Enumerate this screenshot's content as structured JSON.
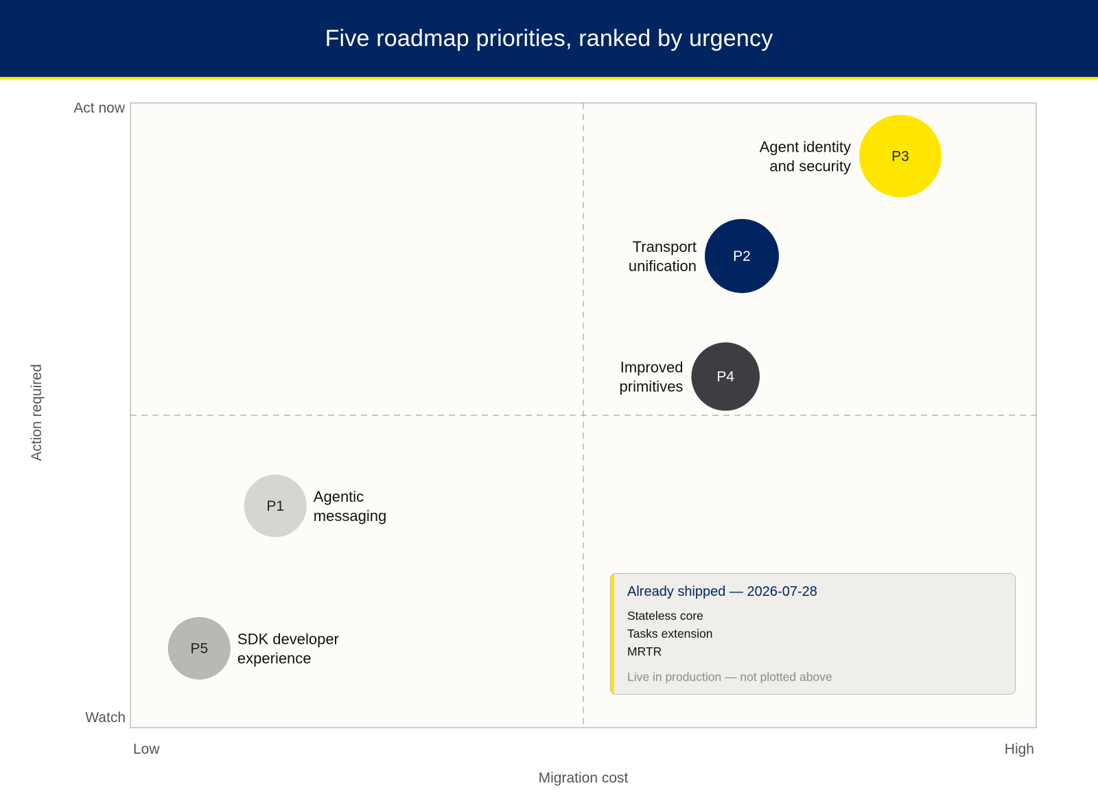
{
  "header": {
    "title": "Five roadmap priorities, ranked by urgency"
  },
  "colors": {
    "header_bg": "#002561",
    "accent_yellow": "#FFE600",
    "plot_bg": "#FDFCF9",
    "callout_bg": "#F0EEEB",
    "dark_navy": "#002561",
    "charcoal": "#3E3E42",
    "light_grey": "#D7D5D2",
    "mid_grey": "#BAB8B5"
  },
  "chart_data": {
    "type": "scatter",
    "title": "Five roadmap priorities, ranked by urgency",
    "xlabel": "Migration cost",
    "ylabel": "Action required",
    "xlim": [
      0,
      1
    ],
    "ylim": [
      0,
      1
    ],
    "x_ticks": [
      "Low",
      "High"
    ],
    "y_ticks": [
      "Watch",
      "Act now"
    ],
    "grid": false,
    "quadrant_dividers": {
      "x": 0.5,
      "y": 0.5
    },
    "points": [
      {
        "id": "P1",
        "label": "Agentic messaging",
        "x": 0.16,
        "y": 0.355,
        "size": 0.76,
        "color": "#D7D5D2",
        "text_color": "#222222"
      },
      {
        "id": "P2",
        "label": "Transport unification",
        "x": 0.675,
        "y": 0.755,
        "size": 0.9,
        "color": "#002561",
        "text_color": "#FFFFFF"
      },
      {
        "id": "P3",
        "label": "Agent identity and security",
        "x": 0.85,
        "y": 0.915,
        "size": 1.0,
        "color": "#FFE600",
        "text_color": "#222222"
      },
      {
        "id": "P4",
        "label": "Improved primitives",
        "x": 0.657,
        "y": 0.562,
        "size": 0.83,
        "color": "#3E3E42",
        "text_color": "#FFFFFF"
      },
      {
        "id": "P5",
        "label": "SDK developer experience",
        "x": 0.076,
        "y": 0.127,
        "size": 0.76,
        "color": "#BAB8B5",
        "text_color": "#222222"
      }
    ]
  },
  "callout": {
    "title": "Already shipped — 2026-07-28",
    "items": [
      "Stateless core",
      "Tasks extension",
      "MRTR"
    ],
    "note": "Live in production — not plotted above"
  }
}
